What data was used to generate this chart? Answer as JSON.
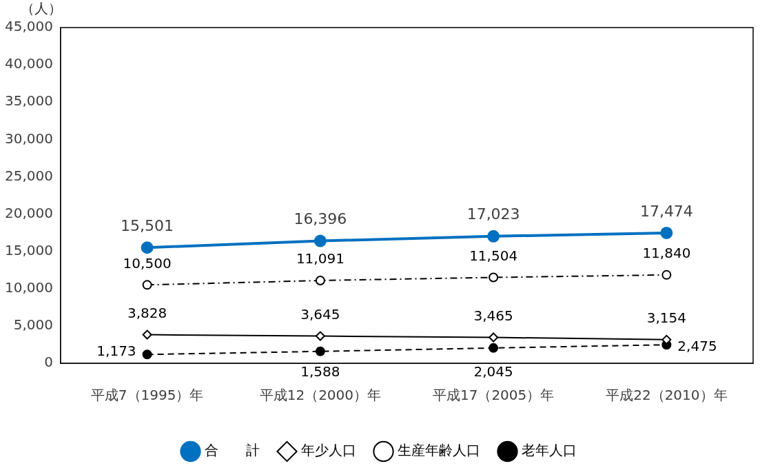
{
  "chart_data": {
    "type": "line",
    "ylabel": "（人）",
    "categories": [
      "平成7（1995）年",
      "平成12（2000）年",
      "平成17（2005）年",
      "平成22（2010）年"
    ],
    "series": [
      {
        "name": "合　　計",
        "color": "#0070c0",
        "values": [
          15501,
          16396,
          17023,
          17474
        ],
        "value_labels": [
          "15,501",
          "16,396",
          "17,023",
          "17,474"
        ],
        "marker": "circle",
        "line_style": "solid"
      },
      {
        "name": "年少人口",
        "color": "#000000",
        "values": [
          3828,
          3645,
          3465,
          3154
        ],
        "value_labels": [
          "3,828",
          "3,645",
          "3,465",
          "3,154"
        ],
        "marker": "diamond",
        "line_style": "solid"
      },
      {
        "name": "生産年齢人口",
        "color": "#000000",
        "values": [
          10500,
          11091,
          11504,
          11840
        ],
        "value_labels": [
          "10,500",
          "11,091",
          "11,504",
          "11,840"
        ],
        "marker": "circle",
        "line_style": "dashdot"
      },
      {
        "name": "老年人口",
        "color": "#000000",
        "values": [
          1173,
          1588,
          2045,
          2475
        ],
        "value_labels": [
          "1,173",
          "1,588",
          "2,045",
          "2,475"
        ],
        "marker": "circle",
        "line_style": "dashed"
      }
    ],
    "ylim": [
      0,
      45000
    ],
    "yticks": [
      0,
      {
        "value": 5000,
        "label": "5,000"
      },
      {
        "value": 10000,
        "label": "10,000"
      },
      {
        "value": 15000,
        "label": "15,000"
      },
      {
        "value": 20000,
        "label": "20,000"
      },
      {
        "value": 25000,
        "label": "25,000"
      },
      {
        "value": 30000,
        "label": "30,000"
      },
      {
        "value": 35000,
        "label": "35,000"
      },
      {
        "value": 40000,
        "label": "40,000"
      },
      {
        "value": 45000,
        "label": "45,000"
      }
    ],
    "grid": false,
    "legend": "bottom"
  }
}
